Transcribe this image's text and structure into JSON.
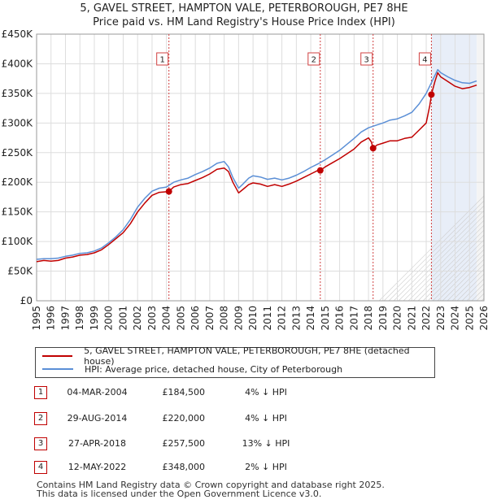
{
  "title_line1": "5, GAVEL STREET, HAMPTON VALE, PETERBOROUGH, PE7 8HE",
  "title_line2": "Price paid vs. HM Land Registry's House Price Index (HPI)",
  "chart_data": {
    "type": "line",
    "ylim": [
      0,
      450000
    ],
    "xlim": [
      1995.0,
      2026.0
    ],
    "y_ticks": [
      0,
      50000,
      100000,
      150000,
      200000,
      250000,
      300000,
      350000,
      400000,
      450000
    ],
    "y_tick_labels": [
      "£0",
      "£50K",
      "£100K",
      "£150K",
      "£200K",
      "£250K",
      "£300K",
      "£350K",
      "£400K",
      "£450K"
    ],
    "x_ticks": [
      "1995",
      "1996",
      "1997",
      "1998",
      "1999",
      "2000",
      "2001",
      "2002",
      "2003",
      "2004",
      "2005",
      "2006",
      "2007",
      "2008",
      "2009",
      "2010",
      "2011",
      "2012",
      "2013",
      "2014",
      "2015",
      "2016",
      "2017",
      "2018",
      "2019",
      "2020",
      "2021",
      "2022",
      "2023",
      "2024",
      "2025",
      "2026"
    ],
    "grid": true,
    "colors": {
      "property": "#c00000",
      "hpi": "#5b8fd6",
      "shade": "#e8eef8",
      "vline": "#d04040",
      "grid": "#dddddd"
    },
    "series": [
      {
        "name": "5, GAVEL STREET, HAMPTON VALE, PETERBOROUGH, PE7 8HE (detached house)",
        "key": "property",
        "x": [
          1995.0,
          1995.5,
          1996.0,
          1996.5,
          1997.0,
          1997.5,
          1998.0,
          1998.5,
          1999.0,
          1999.5,
          2000.0,
          2000.5,
          2001.0,
          2001.5,
          2002.0,
          2002.5,
          2003.0,
          2003.5,
          2004.0,
          2004.17,
          2004.5,
          2005.0,
          2005.5,
          2006.0,
          2006.5,
          2007.0,
          2007.5,
          2008.0,
          2008.3,
          2008.6,
          2009.0,
          2009.3,
          2009.7,
          2010.0,
          2010.5,
          2011.0,
          2011.5,
          2012.0,
          2012.5,
          2013.0,
          2013.5,
          2014.0,
          2014.5,
          2014.66,
          2015.0,
          2015.5,
          2016.0,
          2016.5,
          2017.0,
          2017.5,
          2017.8,
          2018.0,
          2018.2,
          2018.32,
          2018.6,
          2019.0,
          2019.5,
          2020.0,
          2020.5,
          2021.0,
          2021.5,
          2022.0,
          2022.25,
          2022.36,
          2022.6,
          2022.8,
          2023.0,
          2023.5,
          2024.0,
          2024.5,
          2025.0,
          2025.5
        ],
        "values": [
          66000,
          68000,
          67000,
          68000,
          72000,
          74000,
          77000,
          78000,
          81000,
          86000,
          95000,
          105000,
          115000,
          130000,
          150000,
          165000,
          178000,
          183000,
          184000,
          184500,
          192000,
          196000,
          198000,
          203000,
          208000,
          214000,
          222000,
          224000,
          218000,
          200000,
          182000,
          188000,
          196000,
          199000,
          197000,
          193000,
          196000,
          193000,
          197000,
          202000,
          208000,
          214000,
          220000,
          220000,
          226000,
          233000,
          240000,
          248000,
          256000,
          268000,
          272000,
          275000,
          268000,
          257500,
          263000,
          266000,
          270000,
          270000,
          274000,
          276000,
          288000,
          300000,
          330000,
          348000,
          370000,
          385000,
          378000,
          370000,
          362000,
          358000,
          360000,
          364000
        ]
      },
      {
        "name": "HPI: Average price, detached house, City of Peterborough",
        "key": "hpi",
        "x": [
          1995.0,
          1995.5,
          1996.0,
          1996.5,
          1997.0,
          1997.5,
          1998.0,
          1998.5,
          1999.0,
          1999.5,
          2000.0,
          2000.5,
          2001.0,
          2001.5,
          2002.0,
          2002.5,
          2003.0,
          2003.5,
          2004.0,
          2004.5,
          2005.0,
          2005.5,
          2006.0,
          2006.5,
          2007.0,
          2007.5,
          2008.0,
          2008.3,
          2008.6,
          2009.0,
          2009.3,
          2009.7,
          2010.0,
          2010.5,
          2011.0,
          2011.5,
          2012.0,
          2012.5,
          2013.0,
          2013.5,
          2014.0,
          2014.5,
          2015.0,
          2015.5,
          2016.0,
          2016.5,
          2017.0,
          2017.5,
          2018.0,
          2018.5,
          2019.0,
          2019.5,
          2020.0,
          2020.5,
          2021.0,
          2021.5,
          2022.0,
          2022.4,
          2022.8,
          2023.0,
          2023.5,
          2024.0,
          2024.5,
          2025.0,
          2025.5
        ],
        "values": [
          70000,
          71000,
          71000,
          72000,
          75000,
          77000,
          80000,
          81000,
          84000,
          89000,
          98000,
          108000,
          120000,
          137000,
          158000,
          173000,
          185000,
          190000,
          192000,
          200000,
          204000,
          207000,
          213000,
          218000,
          224000,
          232000,
          235000,
          226000,
          208000,
          190000,
          197000,
          207000,
          211000,
          209000,
          205000,
          207000,
          204000,
          207000,
          212000,
          218000,
          225000,
          231000,
          238000,
          246000,
          254000,
          264000,
          274000,
          285000,
          292000,
          296000,
          300000,
          305000,
          307000,
          312000,
          318000,
          332000,
          350000,
          370000,
          390000,
          385000,
          378000,
          372000,
          368000,
          367000,
          371000
        ]
      }
    ],
    "sales": [
      {
        "n": "1",
        "year": 2004.17,
        "price": 184500
      },
      {
        "n": "2",
        "year": 2014.66,
        "price": 220000
      },
      {
        "n": "3",
        "year": 2018.32,
        "price": 257500
      },
      {
        "n": "4",
        "year": 2022.36,
        "price": 348000
      }
    ]
  },
  "legend": {
    "property": "5, GAVEL STREET, HAMPTON VALE, PETERBOROUGH, PE7 8HE (detached house)",
    "hpi": "HPI: Average price, detached house, City of Peterborough"
  },
  "transactions": [
    {
      "n": "1",
      "date": "04-MAR-2004",
      "price": "£184,500",
      "hpi": "4% ↓ HPI"
    },
    {
      "n": "2",
      "date": "29-AUG-2014",
      "price": "£220,000",
      "hpi": "4% ↓ HPI"
    },
    {
      "n": "3",
      "date": "27-APR-2018",
      "price": "£257,500",
      "hpi": "13% ↓ HPI"
    },
    {
      "n": "4",
      "date": "12-MAY-2022",
      "price": "£348,000",
      "hpi": "2% ↓ HPI"
    }
  ],
  "footer_line1": "Contains HM Land Registry data © Crown copyright and database right 2025.",
  "footer_line2": "This data is licensed under the Open Government Licence v3.0."
}
